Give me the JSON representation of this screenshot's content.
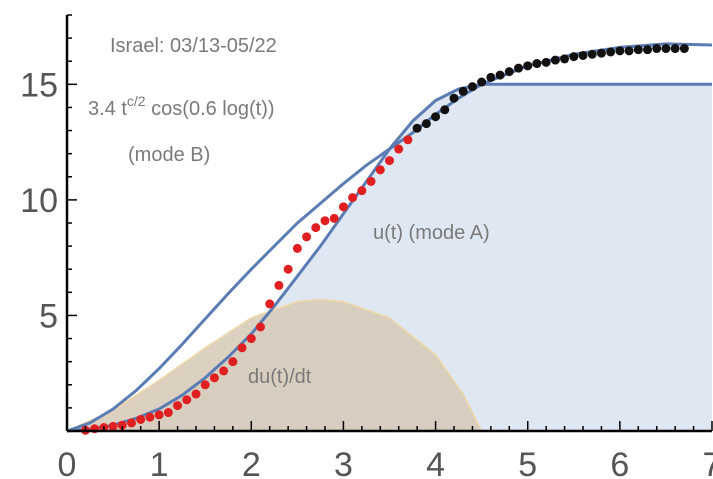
{
  "chart_data": {
    "type": "line",
    "title": "Israel: 03/13-05/22",
    "xlabel": "",
    "ylabel": "",
    "xlim": [
      0,
      7
    ],
    "ylim": [
      0,
      18
    ],
    "x_ticks": [
      "0",
      "1",
      "2",
      "3",
      "4",
      "5",
      "6",
      "7"
    ],
    "y_ticks": [
      "5",
      "10",
      "15"
    ],
    "y_tick_values": [
      5,
      10,
      15
    ],
    "grid": false,
    "legend": "none",
    "annotations": {
      "mode_b_formula": "3.4 t",
      "mode_b_sup": "c/2",
      "mode_b_rest": " cos(0.6 log(t))",
      "mode_b_label": "(mode B)",
      "mode_a_label": "u(t) (mode A)",
      "derivative_label": "du(t)/dt"
    },
    "colors": {
      "curve": "#5b7cb3",
      "fill_u": "#dfe7f3",
      "fill_du": "#d6c9b6",
      "fill_du_edge": "#f0d9a8",
      "points_early": "#e02020",
      "points_late": "#111111"
    },
    "series": [
      {
        "kind": "curve-mode-a",
        "points": [
          [
            0,
            0
          ],
          [
            0.25,
            0.08
          ],
          [
            0.5,
            0.25
          ],
          [
            0.75,
            0.55
          ],
          [
            1,
            0.95
          ],
          [
            1.25,
            1.55
          ],
          [
            1.5,
            2.3
          ],
          [
            1.75,
            3.2
          ],
          [
            2,
            4.2
          ],
          [
            2.25,
            5.4
          ],
          [
            2.5,
            6.7
          ],
          [
            2.75,
            8.0
          ],
          [
            3,
            9.4
          ],
          [
            3.25,
            10.8
          ],
          [
            3.5,
            12.2
          ],
          [
            3.75,
            13.4
          ],
          [
            4,
            14.3
          ],
          [
            4.25,
            14.8
          ],
          [
            4.5,
            15.0
          ],
          [
            7,
            15.0
          ]
        ]
      },
      {
        "kind": "curve-mode-b",
        "points": [
          [
            0,
            0
          ],
          [
            0.25,
            0.35
          ],
          [
            0.5,
            0.95
          ],
          [
            0.75,
            1.75
          ],
          [
            1,
            2.7
          ],
          [
            1.25,
            3.75
          ],
          [
            1.5,
            4.85
          ],
          [
            1.75,
            5.95
          ],
          [
            2,
            7.0
          ],
          [
            2.25,
            8.0
          ],
          [
            2.5,
            9.0
          ],
          [
            2.75,
            9.85
          ],
          [
            3,
            10.7
          ],
          [
            3.25,
            11.5
          ],
          [
            3.5,
            12.2
          ],
          [
            3.75,
            12.9
          ],
          [
            4,
            13.7
          ],
          [
            4.25,
            14.4
          ],
          [
            4.5,
            15.0
          ],
          [
            5,
            15.8
          ],
          [
            5.5,
            16.3
          ],
          [
            6,
            16.6
          ],
          [
            6.5,
            16.75
          ],
          [
            7,
            16.7
          ]
        ]
      },
      {
        "kind": "derivative-area",
        "points": [
          [
            0,
            0
          ],
          [
            0.5,
            0.9
          ],
          [
            1,
            2.2
          ],
          [
            1.5,
            3.6
          ],
          [
            2,
            4.9
          ],
          [
            2.5,
            5.6
          ],
          [
            2.75,
            5.7
          ],
          [
            3,
            5.6
          ],
          [
            3.5,
            4.9
          ],
          [
            4,
            3.3
          ],
          [
            4.3,
            1.6
          ],
          [
            4.5,
            0
          ]
        ]
      },
      {
        "kind": "data-early",
        "points": [
          [
            0.2,
            0.03
          ],
          [
            0.3,
            0.1
          ],
          [
            0.4,
            0.15
          ],
          [
            0.5,
            0.2
          ],
          [
            0.6,
            0.25
          ],
          [
            0.7,
            0.35
          ],
          [
            0.8,
            0.5
          ],
          [
            0.9,
            0.6
          ],
          [
            1.0,
            0.7
          ],
          [
            1.1,
            0.8
          ],
          [
            1.2,
            1.1
          ],
          [
            1.3,
            1.35
          ],
          [
            1.4,
            1.6
          ],
          [
            1.5,
            2.0
          ],
          [
            1.6,
            2.3
          ],
          [
            1.7,
            2.6
          ],
          [
            1.8,
            3.0
          ],
          [
            1.9,
            3.6
          ],
          [
            2.0,
            4.0
          ],
          [
            2.1,
            4.5
          ],
          [
            2.2,
            5.5
          ],
          [
            2.3,
            6.3
          ],
          [
            2.4,
            7.0
          ],
          [
            2.5,
            7.9
          ],
          [
            2.6,
            8.4
          ],
          [
            2.7,
            8.8
          ],
          [
            2.8,
            9.1
          ],
          [
            2.9,
            9.2
          ],
          [
            3.0,
            9.7
          ],
          [
            3.1,
            10.1
          ],
          [
            3.2,
            10.4
          ],
          [
            3.3,
            10.8
          ],
          [
            3.4,
            11.3
          ],
          [
            3.5,
            11.7
          ],
          [
            3.6,
            12.2
          ],
          [
            3.7,
            12.6
          ]
        ]
      },
      {
        "kind": "data-late",
        "points": [
          [
            3.8,
            13.1
          ],
          [
            3.9,
            13.3
          ],
          [
            4.0,
            13.6
          ],
          [
            4.1,
            13.9
          ],
          [
            4.2,
            14.4
          ],
          [
            4.3,
            14.7
          ],
          [
            4.4,
            14.9
          ],
          [
            4.5,
            15.1
          ],
          [
            4.6,
            15.3
          ],
          [
            4.7,
            15.4
          ],
          [
            4.8,
            15.55
          ],
          [
            4.9,
            15.7
          ],
          [
            5.0,
            15.8
          ],
          [
            5.1,
            15.9
          ],
          [
            5.2,
            15.95
          ],
          [
            5.3,
            16.05
          ],
          [
            5.4,
            16.1
          ],
          [
            5.5,
            16.2
          ],
          [
            5.6,
            16.25
          ],
          [
            5.7,
            16.3
          ],
          [
            5.8,
            16.35
          ],
          [
            5.9,
            16.4
          ],
          [
            6.0,
            16.45
          ],
          [
            6.1,
            16.45
          ],
          [
            6.2,
            16.5
          ],
          [
            6.3,
            16.5
          ],
          [
            6.4,
            16.55
          ],
          [
            6.5,
            16.55
          ],
          [
            6.6,
            16.55
          ],
          [
            6.7,
            16.55
          ]
        ]
      }
    ]
  }
}
